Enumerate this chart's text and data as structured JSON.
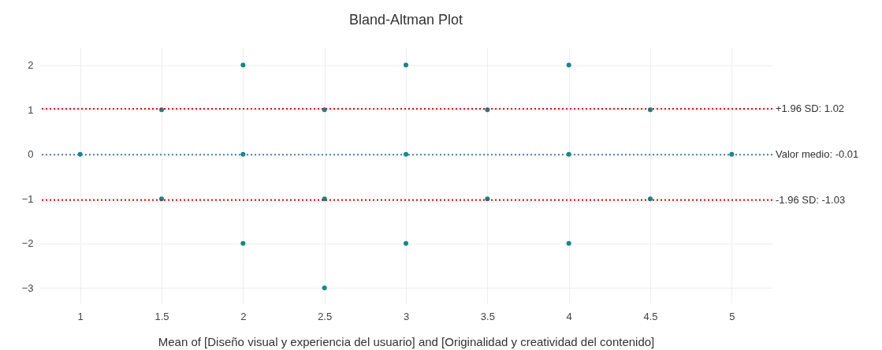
{
  "chart_data": {
    "type": "scatter",
    "title": "Bland-Altman Plot",
    "xlabel": "Mean of [Diseño visual y experiencia del usuario] and [Originalidad y creatividad del contenido]",
    "x": [
      1,
      1.5,
      1.5,
      2,
      2,
      2,
      2.5,
      2.5,
      2.5,
      3,
      3,
      3,
      3.5,
      3.5,
      4,
      4,
      4,
      4.5,
      4.5,
      5
    ],
    "series": [
      {
        "color": "#008b8b",
        "values": [
          0,
          1,
          -1,
          2,
          0,
          -2,
          1,
          -1,
          -3,
          2,
          0,
          -2,
          1,
          -1,
          2,
          0,
          -2,
          1,
          -1,
          0
        ]
      }
    ],
    "xlim": [
      0.75,
      5.25
    ],
    "ylim": [
      -3.35,
      2.4
    ],
    "xticks": [
      1,
      1.5,
      2,
      2.5,
      3,
      3.5,
      4,
      4.5,
      5
    ],
    "yticks": [
      -3,
      -2,
      -1,
      0,
      1,
      2
    ],
    "ref_lines": [
      {
        "axis": "y",
        "value": 1.02,
        "label": "+1.96 SD: 1.02",
        "color": "#ff0000",
        "line_style": "dotted"
      },
      {
        "axis": "y",
        "value": -0.01,
        "label": "Valor medio: -0.01",
        "color": "#4682b4",
        "line_style": "dotted"
      },
      {
        "axis": "y",
        "value": -1.03,
        "label": "-1.96 SD: -1.03",
        "color": "#ff0000",
        "line_style": "dotted"
      }
    ],
    "grid": true,
    "marker": "circle"
  }
}
